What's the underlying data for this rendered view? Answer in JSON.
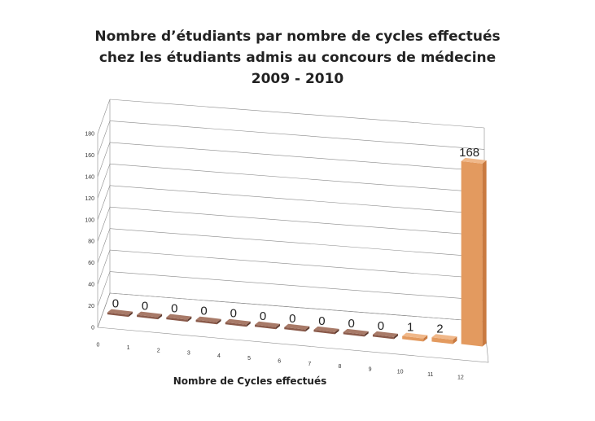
{
  "chart_data": {
    "type": "bar",
    "title_lines": [
      "Nombre d’étudiants par nombre de cycles effectués",
      "chez les étudiants admis au concours de médecine",
      "2009 - 2010"
    ],
    "xlabel": "Nombre de Cycles effectués",
    "ylabel": "",
    "categories": [
      "0",
      "1",
      "2",
      "3",
      "4",
      "5",
      "6",
      "7",
      "8",
      "9",
      "10",
      "11",
      "12"
    ],
    "values": [
      0,
      0,
      0,
      0,
      0,
      0,
      0,
      0,
      0,
      0,
      1,
      2,
      168
    ],
    "data_labels": [
      "0",
      "0",
      "0",
      "0",
      "0",
      "0",
      "0",
      "0",
      "0",
      "0",
      "1",
      "2",
      "168"
    ],
    "yticks": [
      "0",
      "20",
      "40",
      "60",
      "80",
      "100",
      "120",
      "140",
      "160",
      "180"
    ],
    "ylim": [
      0,
      180
    ],
    "grid": true,
    "legend": "none",
    "bar_color": "#e39a5f",
    "zero_bar_color": "#8a5a4a"
  }
}
